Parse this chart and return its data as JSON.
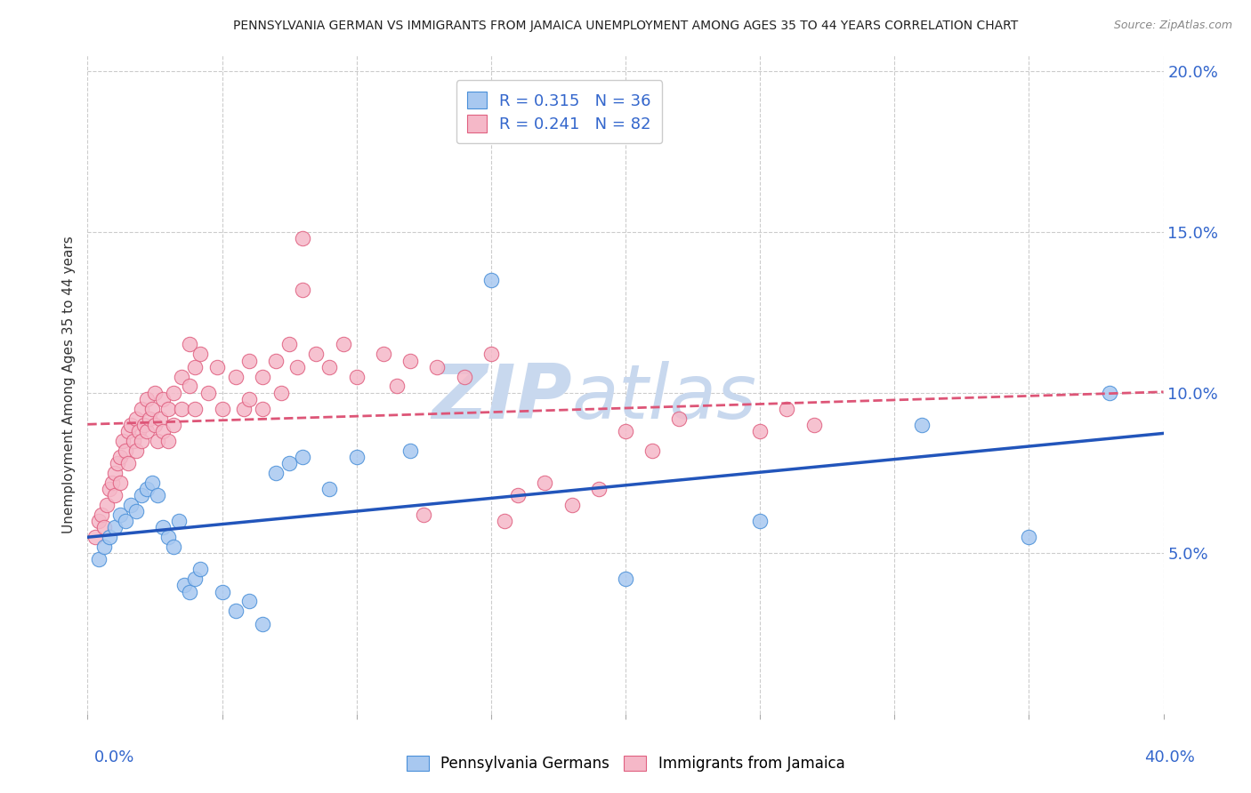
{
  "title": "PENNSYLVANIA GERMAN VS IMMIGRANTS FROM JAMAICA UNEMPLOYMENT AMONG AGES 35 TO 44 YEARS CORRELATION CHART",
  "source": "Source: ZipAtlas.com",
  "ylabel": "Unemployment Among Ages 35 to 44 years",
  "xlim": [
    0.0,
    0.4
  ],
  "ylim": [
    0.0,
    0.205
  ],
  "blue_R": 0.315,
  "blue_N": 36,
  "pink_R": 0.241,
  "pink_N": 82,
  "blue_color": "#A8C8F0",
  "pink_color": "#F5B8C8",
  "blue_edge_color": "#4A90D9",
  "pink_edge_color": "#E06080",
  "blue_line_color": "#2255BB",
  "pink_line_color": "#DD5577",
  "blue_scatter": [
    [
      0.004,
      0.048
    ],
    [
      0.006,
      0.052
    ],
    [
      0.008,
      0.055
    ],
    [
      0.01,
      0.058
    ],
    [
      0.012,
      0.062
    ],
    [
      0.014,
      0.06
    ],
    [
      0.016,
      0.065
    ],
    [
      0.018,
      0.063
    ],
    [
      0.02,
      0.068
    ],
    [
      0.022,
      0.07
    ],
    [
      0.024,
      0.072
    ],
    [
      0.026,
      0.068
    ],
    [
      0.028,
      0.058
    ],
    [
      0.03,
      0.055
    ],
    [
      0.032,
      0.052
    ],
    [
      0.034,
      0.06
    ],
    [
      0.036,
      0.04
    ],
    [
      0.038,
      0.038
    ],
    [
      0.04,
      0.042
    ],
    [
      0.042,
      0.045
    ],
    [
      0.05,
      0.038
    ],
    [
      0.055,
      0.032
    ],
    [
      0.06,
      0.035
    ],
    [
      0.065,
      0.028
    ],
    [
      0.07,
      0.075
    ],
    [
      0.075,
      0.078
    ],
    [
      0.08,
      0.08
    ],
    [
      0.09,
      0.07
    ],
    [
      0.1,
      0.08
    ],
    [
      0.12,
      0.082
    ],
    [
      0.15,
      0.135
    ],
    [
      0.2,
      0.042
    ],
    [
      0.25,
      0.06
    ],
    [
      0.31,
      0.09
    ],
    [
      0.35,
      0.055
    ],
    [
      0.38,
      0.1
    ]
  ],
  "pink_scatter": [
    [
      0.003,
      0.055
    ],
    [
      0.004,
      0.06
    ],
    [
      0.005,
      0.062
    ],
    [
      0.006,
      0.058
    ],
    [
      0.007,
      0.065
    ],
    [
      0.008,
      0.07
    ],
    [
      0.009,
      0.072
    ],
    [
      0.01,
      0.068
    ],
    [
      0.01,
      0.075
    ],
    [
      0.011,
      0.078
    ],
    [
      0.012,
      0.08
    ],
    [
      0.012,
      0.072
    ],
    [
      0.013,
      0.085
    ],
    [
      0.014,
      0.082
    ],
    [
      0.015,
      0.088
    ],
    [
      0.015,
      0.078
    ],
    [
      0.016,
      0.09
    ],
    [
      0.017,
      0.085
    ],
    [
      0.018,
      0.092
    ],
    [
      0.018,
      0.082
    ],
    [
      0.019,
      0.088
    ],
    [
      0.02,
      0.095
    ],
    [
      0.02,
      0.085
    ],
    [
      0.021,
      0.09
    ],
    [
      0.022,
      0.098
    ],
    [
      0.022,
      0.088
    ],
    [
      0.023,
      0.092
    ],
    [
      0.024,
      0.095
    ],
    [
      0.025,
      0.1
    ],
    [
      0.025,
      0.09
    ],
    [
      0.026,
      0.085
    ],
    [
      0.027,
      0.092
    ],
    [
      0.028,
      0.098
    ],
    [
      0.028,
      0.088
    ],
    [
      0.03,
      0.095
    ],
    [
      0.03,
      0.085
    ],
    [
      0.032,
      0.1
    ],
    [
      0.032,
      0.09
    ],
    [
      0.035,
      0.105
    ],
    [
      0.035,
      0.095
    ],
    [
      0.038,
      0.115
    ],
    [
      0.038,
      0.102
    ],
    [
      0.04,
      0.108
    ],
    [
      0.04,
      0.095
    ],
    [
      0.042,
      0.112
    ],
    [
      0.045,
      0.1
    ],
    [
      0.048,
      0.108
    ],
    [
      0.05,
      0.095
    ],
    [
      0.055,
      0.105
    ],
    [
      0.058,
      0.095
    ],
    [
      0.06,
      0.11
    ],
    [
      0.06,
      0.098
    ],
    [
      0.065,
      0.105
    ],
    [
      0.065,
      0.095
    ],
    [
      0.07,
      0.11
    ],
    [
      0.072,
      0.1
    ],
    [
      0.075,
      0.115
    ],
    [
      0.078,
      0.108
    ],
    [
      0.08,
      0.148
    ],
    [
      0.08,
      0.132
    ],
    [
      0.085,
      0.112
    ],
    [
      0.09,
      0.108
    ],
    [
      0.095,
      0.115
    ],
    [
      0.1,
      0.105
    ],
    [
      0.11,
      0.112
    ],
    [
      0.115,
      0.102
    ],
    [
      0.12,
      0.11
    ],
    [
      0.125,
      0.062
    ],
    [
      0.13,
      0.108
    ],
    [
      0.14,
      0.105
    ],
    [
      0.15,
      0.112
    ],
    [
      0.155,
      0.06
    ],
    [
      0.16,
      0.068
    ],
    [
      0.17,
      0.072
    ],
    [
      0.18,
      0.065
    ],
    [
      0.19,
      0.07
    ],
    [
      0.2,
      0.088
    ],
    [
      0.21,
      0.082
    ],
    [
      0.22,
      0.092
    ],
    [
      0.25,
      0.088
    ],
    [
      0.26,
      0.095
    ],
    [
      0.27,
      0.09
    ]
  ],
  "watermark_zip": "ZIP",
  "watermark_atlas": "atlas",
  "watermark_color": "#C8D8EE",
  "background_color": "#FFFFFF",
  "grid_color": "#CCCCCC"
}
